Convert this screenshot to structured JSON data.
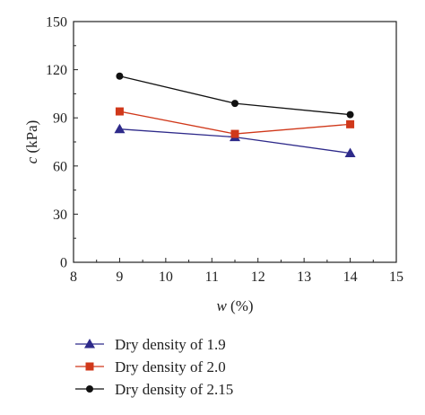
{
  "chart_data": {
    "type": "line",
    "title": "",
    "xlabel_var": "w",
    "xlabel_unit": " (%)",
    "ylabel_var": "c",
    "ylabel_unit": " (kPa)",
    "xlim": [
      8,
      15
    ],
    "ylim": [
      0,
      150
    ],
    "xticks": [
      8,
      9,
      10,
      11,
      12,
      13,
      14,
      15
    ],
    "yticks": [
      0,
      30,
      60,
      90,
      120,
      150
    ],
    "grid": false,
    "legend_position": "below",
    "x": [
      9,
      11.5,
      14
    ],
    "series": [
      {
        "name": "Dry density of 1.9",
        "color": "#2e2a8a",
        "marker": "triangle",
        "values": [
          83,
          78,
          68
        ]
      },
      {
        "name": "Dry density of 2.0",
        "color": "#d0381a",
        "marker": "square",
        "values": [
          94,
          80,
          86
        ]
      },
      {
        "name": "Dry density of 2.15",
        "color": "#111111",
        "marker": "circle",
        "values": [
          116,
          99,
          92
        ]
      }
    ]
  }
}
